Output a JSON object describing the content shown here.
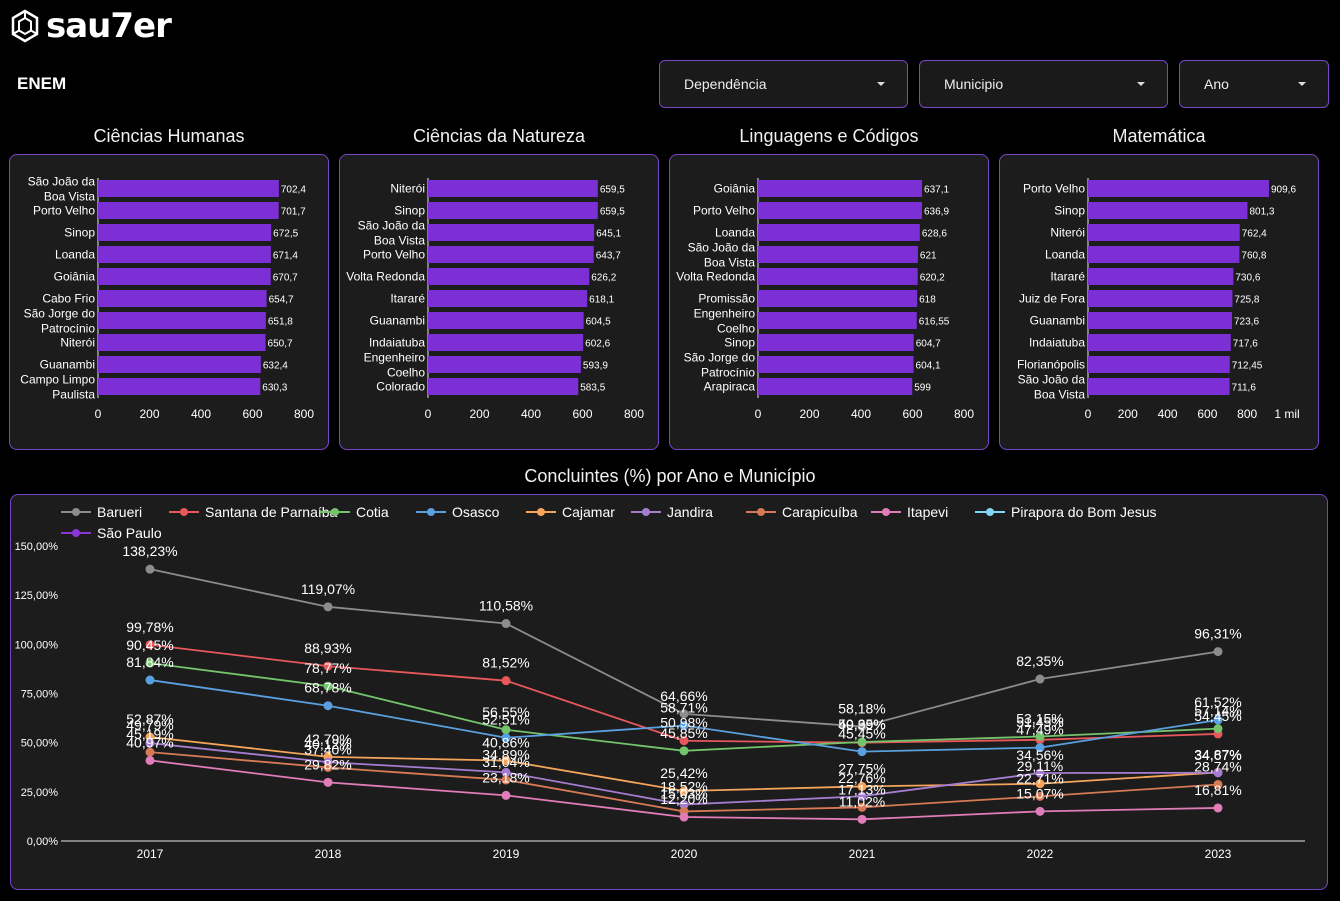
{
  "brand": {
    "logo_text": "sau7er",
    "logo_icon": "hexagon-logo-icon"
  },
  "header": {
    "title": "ENEM"
  },
  "filters": [
    {
      "label": "Dependência",
      "icon": "chevron-down-icon"
    },
    {
      "label": "Municipio",
      "icon": "chevron-down-icon"
    },
    {
      "label": "Ano",
      "icon": "chevron-down-icon"
    }
  ],
  "colors": {
    "accent": "#7a46c8",
    "bar": "#7b2fd4",
    "background": "#000000",
    "card": "#1c1c1c"
  },
  "chart_data": [
    {
      "type": "bar",
      "orientation": "horizontal",
      "title": "Ciências Humanas",
      "categories": [
        "São João da Boa Vista",
        "Porto Velho",
        "Sinop",
        "Loanda",
        "Goiânia",
        "Cabo Frio",
        "São Jorge do Patrocínio",
        "Niterói",
        "Guanambi",
        "Campo Limpo Paulista"
      ],
      "values": [
        702.4,
        701.7,
        672.5,
        671.4,
        670.7,
        654.7,
        651.8,
        650.7,
        632.4,
        630.3
      ],
      "value_labels": [
        "702,4",
        "701,7",
        "672,5",
        "671,4",
        "670,7",
        "654,7",
        "651,8",
        "650,7",
        "632,4",
        "630,3"
      ],
      "xlim": [
        0,
        800
      ],
      "xticks": [
        0,
        200,
        400,
        600,
        800
      ],
      "xtick_labels": [
        "0",
        "200",
        "400",
        "600",
        "800"
      ]
    },
    {
      "type": "bar",
      "orientation": "horizontal",
      "title": "Ciências da Natureza",
      "categories": [
        "Niterói",
        "Sinop",
        "São João da Boa Vista",
        "Porto Velho",
        "Volta Redonda",
        "Itararé",
        "Guanambi",
        "Indaiatuba",
        "Engenheiro Coelho",
        "Colorado"
      ],
      "values": [
        659.5,
        659.5,
        645.1,
        643.7,
        626.2,
        618.1,
        604.5,
        602.6,
        593.9,
        583.5
      ],
      "value_labels": [
        "659,5",
        "659,5",
        "645,1",
        "643,7",
        "626,2",
        "618,1",
        "604,5",
        "602,6",
        "593,9",
        "583,5"
      ],
      "xlim": [
        0,
        800
      ],
      "xticks": [
        0,
        200,
        400,
        600,
        800
      ],
      "xtick_labels": [
        "0",
        "200",
        "400",
        "600",
        "800"
      ]
    },
    {
      "type": "bar",
      "orientation": "horizontal",
      "title": "Linguagens e Códigos",
      "categories": [
        "Goiânia",
        "Porto Velho",
        "Loanda",
        "São João da Boa Vista",
        "Volta Redonda",
        "Promissão",
        "Engenheiro Coelho",
        "Sinop",
        "São Jorge do Patrocínio",
        "Arapiraca"
      ],
      "values": [
        637.1,
        636.9,
        628.6,
        621,
        620.2,
        618,
        616.55,
        604.7,
        604.1,
        599
      ],
      "value_labels": [
        "637,1",
        "636,9",
        "628,6",
        "621",
        "620,2",
        "618",
        "616,55",
        "604,7",
        "604,1",
        "599"
      ],
      "xlim": [
        0,
        800
      ],
      "xticks": [
        0,
        200,
        400,
        600,
        800
      ],
      "xtick_labels": [
        "0",
        "200",
        "400",
        "600",
        "800"
      ]
    },
    {
      "type": "bar",
      "orientation": "horizontal",
      "title": "Matemática",
      "categories": [
        "Porto Velho",
        "Sinop",
        "Niterói",
        "Loanda",
        "Itararé",
        "Juiz de Fora",
        "Guanambi",
        "Indaiatuba",
        "Florianópolis",
        "São João da Boa Vista"
      ],
      "values": [
        909.6,
        801.3,
        762.4,
        760.8,
        730.6,
        725.8,
        723.6,
        717.6,
        712.45,
        711.6
      ],
      "value_labels": [
        "909,6",
        "801,3",
        "762,4",
        "760,8",
        "730,6",
        "725,8",
        "723,6",
        "717,6",
        "712,45",
        "711,6"
      ],
      "xlim": [
        0,
        1100
      ],
      "xticks": [
        0,
        200,
        400,
        600,
        800,
        1000
      ],
      "xtick_labels": [
        "0",
        "200",
        "400",
        "600",
        "800",
        "1 mil"
      ]
    },
    {
      "type": "line",
      "title": "Concluintes (%) por Ano e Município",
      "categories": [
        "2017",
        "2018",
        "2019",
        "2020",
        "2021",
        "2022",
        "2023"
      ],
      "ylim": [
        0,
        150
      ],
      "yticks": [
        0,
        25,
        50,
        75,
        100,
        125,
        150
      ],
      "ytick_labels": [
        "0,00%",
        "25,00%",
        "50,00%",
        "75,00%",
        "100,00%",
        "125,00%",
        "150,00%"
      ],
      "legend_position": "top-left",
      "series": [
        {
          "name": "Barueri",
          "color": "#8c8c8c",
          "values": [
            138.23,
            119.07,
            110.58,
            64.66,
            58.18,
            82.35,
            96.31
          ],
          "labels": [
            "138,23%",
            "119,07%",
            "110,58%",
            "64,66%",
            "58,18%",
            "82,35%",
            "96,31%"
          ]
        },
        {
          "name": "Santana de Parnaíba",
          "color": "#e8585b",
          "values": [
            99.78,
            88.93,
            81.52,
            50.98,
            49.99,
            51.45,
            54.45
          ],
          "labels": [
            "99,78%",
            "88,93%",
            "81,52%",
            "50,98%",
            "49,99%",
            "51,45%",
            "54,45%"
          ]
        },
        {
          "name": "Cotia",
          "color": "#74c46c",
          "values": [
            90.45,
            78.77,
            56.55,
            45.85,
            50.35,
            53.15,
            57.14
          ],
          "labels": [
            "90,45%",
            "78,77%",
            "56,55%",
            "45,85%",
            "50,35%",
            "53,15%",
            "57,14%"
          ]
        },
        {
          "name": "Osasco",
          "color": "#5aa0e0",
          "values": [
            81.84,
            68.78,
            52.51,
            58.71,
            45.45,
            47.49,
            61.52
          ],
          "labels": [
            "81,84%",
            "68,78%",
            "52,51%",
            "58,71%",
            "45,45%",
            "47,49%",
            "61,52%"
          ]
        },
        {
          "name": "Cajamar",
          "color": "#f4a55a",
          "values": [
            52.87,
            42.79,
            40.86,
            25.42,
            27.75,
            29.11,
            34.87
          ],
          "labels": [
            "52,87%",
            "42,79%",
            "40,86%",
            "25,42%",
            "27,75%",
            "29,11%",
            "34,87%"
          ]
        },
        {
          "name": "Jandira",
          "color": "#a57dd0",
          "values": [
            49.79,
            40.12,
            34.89,
            18.52,
            22.76,
            34.56,
            34.67
          ],
          "labels": [
            "49,79%",
            "40,12%",
            "34,89%",
            "18,52%",
            "22,76%",
            "34,56%",
            "34,67%"
          ]
        },
        {
          "name": "Carapicuíba",
          "color": "#d67a55",
          "values": [
            45.19,
            37.4,
            31.04,
            15.03,
            17.13,
            22.71,
            28.74
          ],
          "labels": [
            "45,19%",
            "37,40%",
            "31,04%",
            "15,03%",
            "17,13%",
            "22,71%",
            "28,74%"
          ]
        },
        {
          "name": "Itapevi",
          "color": "#e07cb8",
          "values": [
            40.97,
            29.82,
            23.18,
            12.2,
            11.02,
            15.07,
            16.81
          ],
          "labels": [
            "40,97%",
            "29,82%",
            "23,18%",
            "12,20%",
            "11,02%",
            "15,07%",
            "16,81%"
          ]
        },
        {
          "name": "Pirapora do Bom Jesus",
          "color": "#7fd6f5",
          "values": [
            null,
            null,
            null,
            null,
            null,
            null,
            null
          ],
          "labels": []
        },
        {
          "name": "São Paulo",
          "color": "#8a35d8",
          "values": [
            null,
            null,
            null,
            null,
            null,
            null,
            null
          ],
          "labels": []
        }
      ]
    }
  ]
}
